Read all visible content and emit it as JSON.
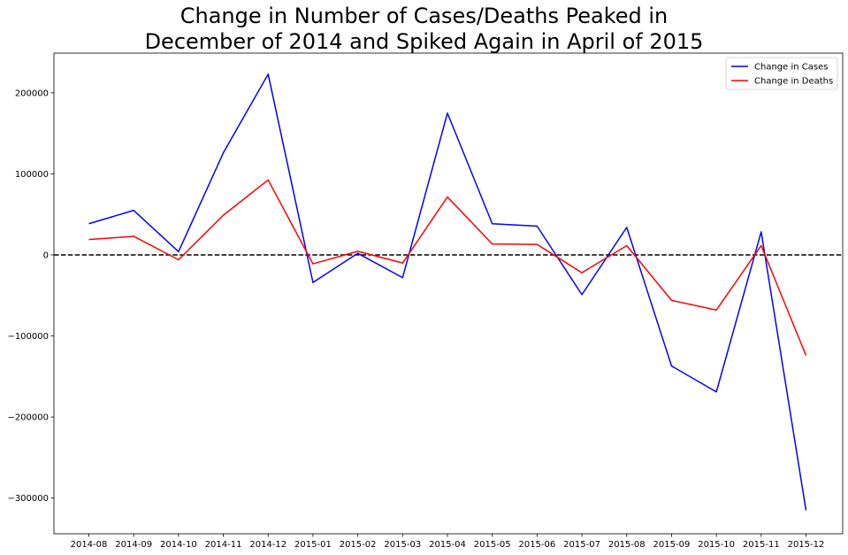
{
  "chart_data": {
    "type": "line",
    "title_lines": [
      "Change in Number of Cases/Deaths Peaked in",
      "December of 2014 and Spiked Again in April of 2015"
    ],
    "xlabel": "",
    "ylabel": "",
    "categories": [
      "2014-08",
      "2014-09",
      "2014-10",
      "2014-11",
      "2014-12",
      "2015-01",
      "2015-02",
      "2015-03",
      "2015-04",
      "2015-05",
      "2015-06",
      "2015-07",
      "2015-08",
      "2015-09",
      "2015-10",
      "2015-11",
      "2015-12"
    ],
    "yticks": [
      200000,
      100000,
      0,
      -100000,
      -200000,
      -300000
    ],
    "ytick_labels": [
      "200000",
      "100000",
      "0",
      "−100000",
      "−200000",
      "−300000"
    ],
    "ylim": [
      -344000,
      249000
    ],
    "series": [
      {
        "name": "Change in Cases",
        "color": "#0000ff",
        "values": [
          38500,
          55000,
          4000,
          126000,
          223000,
          -34000,
          2000,
          -28000,
          175000,
          38500,
          35500,
          -49000,
          34000,
          -137000,
          -169000,
          28500,
          -315000
        ]
      },
      {
        "name": "Change in Deaths",
        "color": "#ff0000",
        "values": [
          19000,
          23000,
          -6000,
          49000,
          92500,
          -11000,
          4500,
          -10000,
          71500,
          13500,
          13000,
          -22000,
          11500,
          -56000,
          -68000,
          11500,
          -124000
        ]
      }
    ],
    "reference_line": {
      "y": 0,
      "style": "dashed",
      "color": "#000000"
    },
    "grid": false,
    "legend": "top-right"
  }
}
